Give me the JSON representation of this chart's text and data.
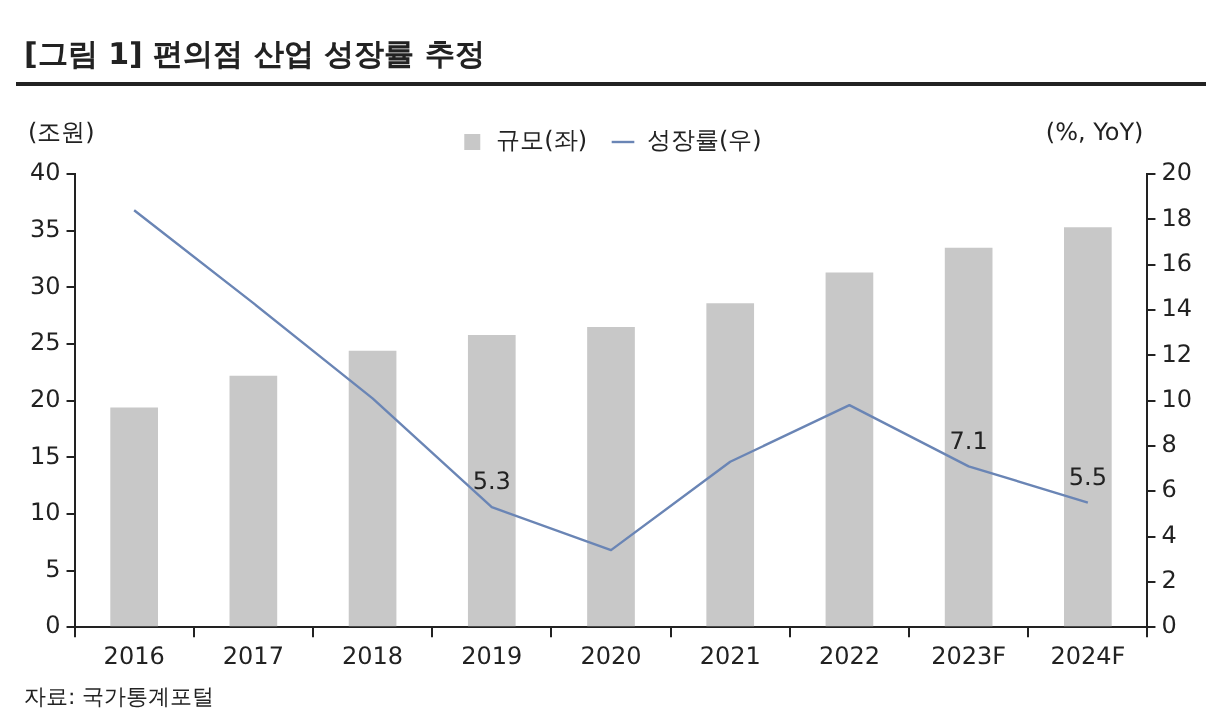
{
  "chart_data": {
    "type": "bar",
    "title": "[그림 1] 편의점 산업 성장률 추정",
    "categories": [
      "2016",
      "2017",
      "2018",
      "2019",
      "2020",
      "2021",
      "2022",
      "2023F",
      "2024F"
    ],
    "series": [
      {
        "name": "규모(좌)",
        "color": "#c8c8c8",
        "values": [
          19.4,
          22.2,
          24.4,
          25.8,
          26.5,
          28.6,
          31.3,
          33.5,
          35.3
        ]
      },
      {
        "name": "성장률(우)",
        "type": "line",
        "axis": "y2",
        "color": "#6a85b5",
        "values": [
          18.4,
          14.3,
          10.1,
          5.3,
          3.4,
          7.3,
          9.8,
          7.1,
          5.5
        ],
        "value_labels": [
          null,
          null,
          null,
          "5.3",
          null,
          null,
          null,
          "7.1",
          "5.5"
        ]
      }
    ],
    "ylabel": "(조원)",
    "y2label": "(%, YoY)",
    "ylim": [
      0,
      40
    ],
    "yticks": [
      0,
      5,
      10,
      15,
      20,
      25,
      30,
      35,
      40
    ],
    "y2lim": [
      0,
      20
    ],
    "y2ticks": [
      0,
      2,
      4,
      6,
      8,
      10,
      12,
      14,
      16,
      18,
      20
    ],
    "grid": false,
    "legend": "top",
    "marker": "none",
    "line_style": "solid",
    "annotations": [
      "자료: 국가통계포털"
    ]
  }
}
